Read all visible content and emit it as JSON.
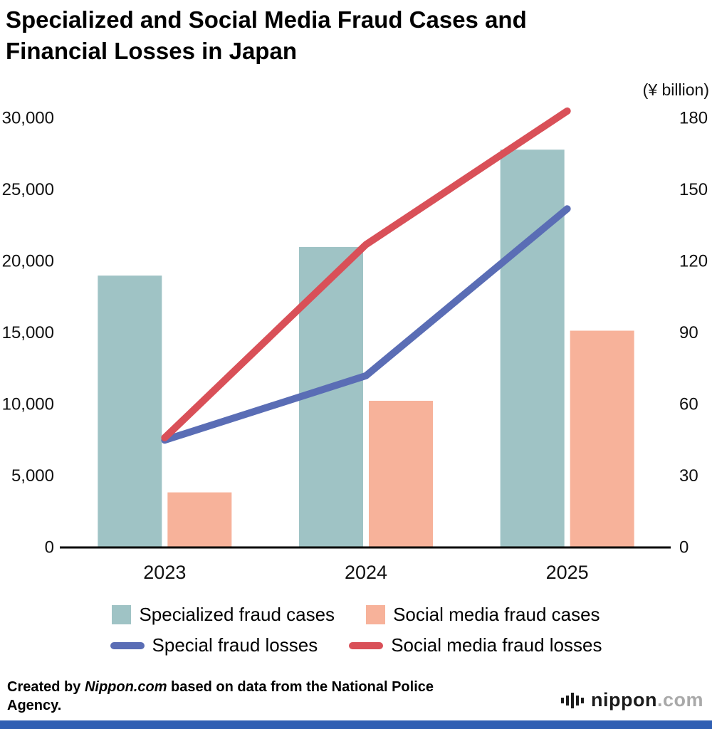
{
  "page": {
    "title_line1": "Specialized and Social Media Fraud Cases and",
    "title_line2": "Financial Losses in Japan"
  },
  "chart_data": {
    "type": "combo_bar_line",
    "title": "Specialized and Social Media Fraud Cases and Financial Losses in Japan",
    "categories": [
      "2023",
      "2024",
      "2025"
    ],
    "bar_series": [
      {
        "name": "Specialized fraud cases",
        "axis": "left",
        "color": "#9fc3c5",
        "values": [
          19000,
          21000,
          27800
        ]
      },
      {
        "name": "Social media fraud cases",
        "axis": "left",
        "color": "#f7b29a",
        "values": [
          3850,
          10250,
          15150
        ]
      }
    ],
    "line_series": [
      {
        "name": "Special fraud losses",
        "axis": "right",
        "color": "#5a6db5",
        "values": [
          45,
          72,
          142
        ]
      },
      {
        "name": "Social media fraud losses",
        "axis": "right",
        "color": "#d95058",
        "values": [
          46,
          127,
          183
        ]
      }
    ],
    "left_axis": {
      "min": 0,
      "max": 30000,
      "tick_step": 5000,
      "tick_labels": [
        "0",
        "5,000",
        "10,000",
        "15,000",
        "20,000",
        "25,000",
        "30,000"
      ]
    },
    "right_axis": {
      "min": 0,
      "max": 180,
      "tick_step": 30,
      "unit_label": "(¥ billion)",
      "tick_labels": [
        "0",
        "30",
        "60",
        "90",
        "120",
        "150",
        "180"
      ]
    },
    "grid": false,
    "legend_position": "bottom"
  },
  "footer": {
    "credit_prefix": "Created by ",
    "credit_source": "Nippon.com",
    "credit_suffix": " based on data from the National Police Agency.",
    "logo_text": "nippon",
    "logo_suffix": ".com"
  },
  "colors": {
    "bottom_bar": "#2f5fb3"
  }
}
